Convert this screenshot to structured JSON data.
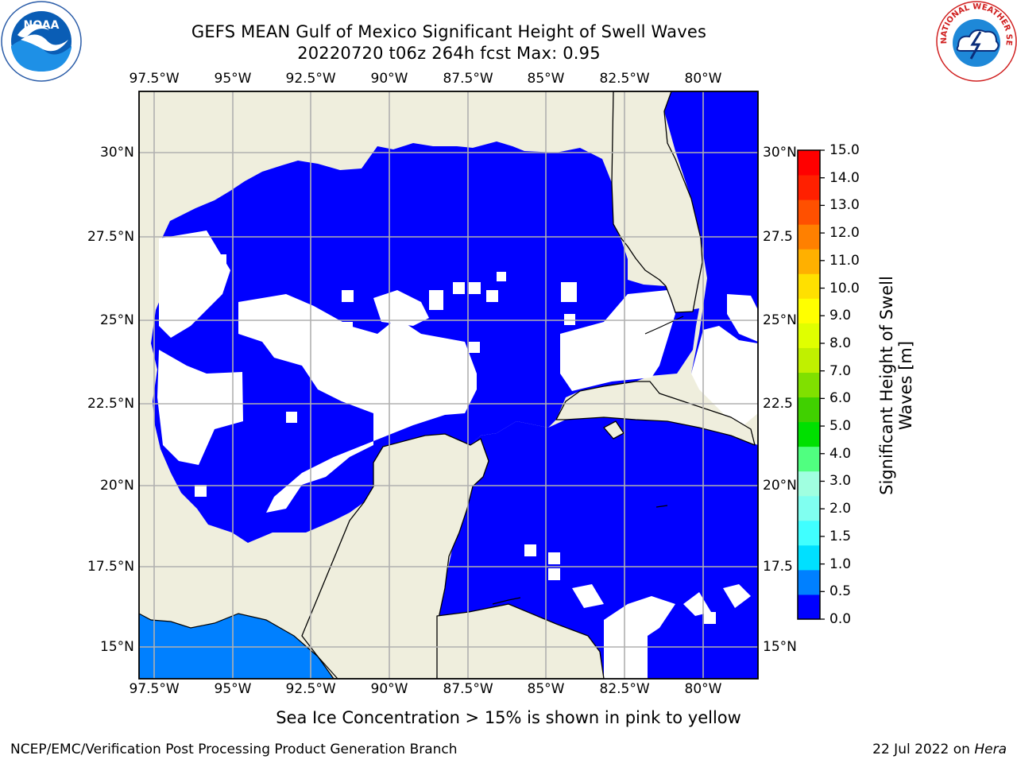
{
  "title_line1": "GEFS MEAN Gulf of Mexico Significant Height of Swell Waves",
  "title_line2": "20220720 t06z 264h fcst   Max: 0.95",
  "lon_labels": [
    "97.5°W",
    "95°W",
    "92.5°W",
    "90°W",
    "87.5°W",
    "85°W",
    "82.5°W",
    "80°W"
  ],
  "lat_labels_left": [
    "30°N",
    "27.5°N",
    "25°N",
    "22.5°N",
    "20°N",
    "17.5°N",
    "15°N"
  ],
  "lat_labels_right": [
    "30°N",
    "27.5",
    "25°N",
    "22.5",
    "20°N",
    "17.5",
    "15°N"
  ],
  "colorbar": {
    "label": "Significant Height of Swell Waves [m]",
    "ticks": [
      "15.0",
      "14.0",
      "13.0",
      "12.0",
      "11.0",
      "10.0",
      "9.0",
      "8.0",
      "7.0",
      "6.0",
      "5.0",
      "4.0",
      "3.0",
      "2.0",
      "1.5",
      "1.0",
      "0.5",
      "0.0"
    ],
    "colors": [
      "#0000ff",
      "#0080ff",
      "#00e0ff",
      "#40ffff",
      "#80fff0",
      "#a0ffe0",
      "#50ff80",
      "#00e000",
      "#40d000",
      "#80e000",
      "#c0f000",
      "#e0ff00",
      "#ffff00",
      "#ffe000",
      "#ffb000",
      "#ff8000",
      "#ff5000",
      "#ff2000",
      "#ff0000"
    ]
  },
  "map_colors": {
    "land": "#efeedd",
    "swell": "#0000ff",
    "swell_high": "#0080ff",
    "calm": "#ffffff",
    "grid": "#b0b0b0"
  },
  "footer_note": "Sea Ice Concentration > 15% is shown in pink to yellow",
  "footer_left": "NCEP/EMC/Verification Post Processing Product Generation Branch",
  "footer_right_prefix": "22 Jul 2022 on ",
  "footer_right_host": "Hera",
  "logos": {
    "left": "NOAA",
    "right": "NATIONAL WEATHER SERVICE"
  }
}
